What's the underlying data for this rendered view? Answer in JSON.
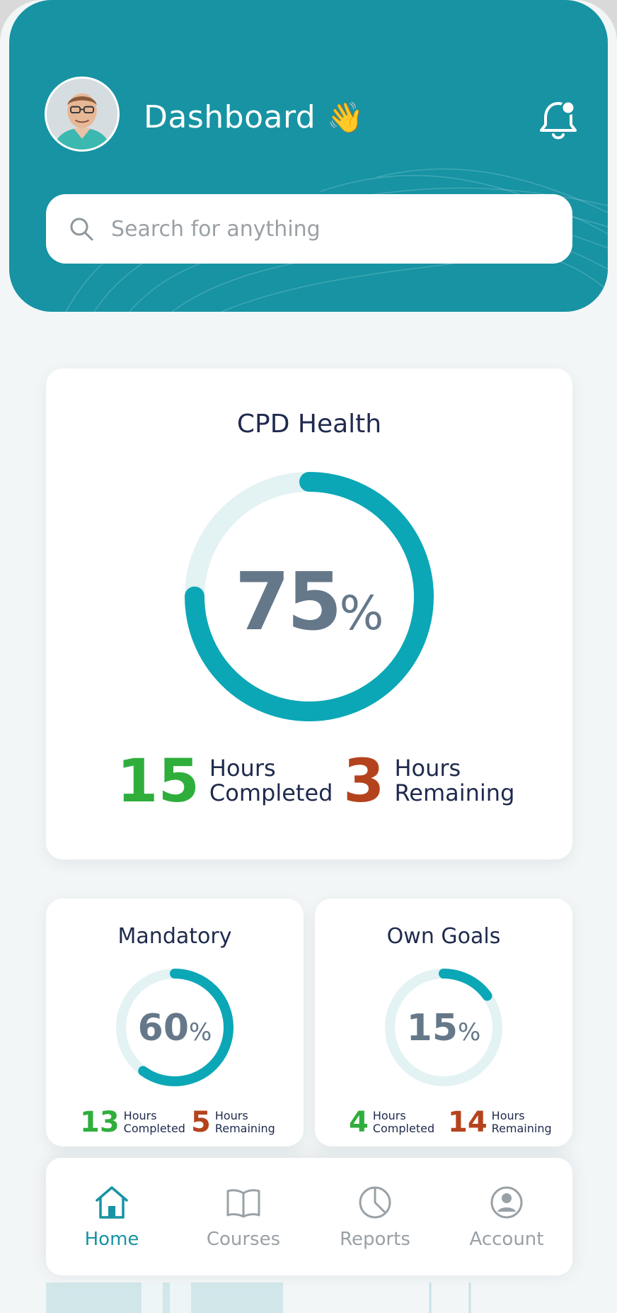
{
  "header": {
    "title": "Dashboard",
    "title_emoji": "👋",
    "search_placeholder": "Search for anything",
    "avatar_icon": "user-avatar",
    "notification_icon": "bell-icon"
  },
  "colors": {
    "teal": "#1793a3",
    "ring": "#0ba7b6",
    "ring_track": "#e3f2f3",
    "green": "#2fae3c",
    "rust": "#b4431d",
    "navy": "#1f2a4d",
    "slate": "#65788a"
  },
  "cpd": {
    "title": "CPD Health",
    "percent": "75",
    "percent_value": 75,
    "unit": "%",
    "completed": "15",
    "completed_label_1": "Hours",
    "completed_label_2": "Completed",
    "remaining": "3",
    "remaining_label_1": "Hours",
    "remaining_label_2": "Remaining"
  },
  "mandatory": {
    "title": "Mandatory",
    "percent": "60",
    "percent_value": 60,
    "unit": "%",
    "completed": "13",
    "completed_label_1": "Hours",
    "completed_label_2": "Completed",
    "remaining": "5",
    "remaining_label_1": "Hours",
    "remaining_label_2": "Remaining"
  },
  "own_goals": {
    "title": "Own Goals",
    "percent": "15",
    "percent_value": 15,
    "unit": "%",
    "completed": "4",
    "completed_label_1": "Hours",
    "completed_label_2": "Completed",
    "remaining": "14",
    "remaining_label_1": "Hours",
    "remaining_label_2": "Remaining"
  },
  "nav": {
    "items": [
      {
        "label": "Home",
        "icon": "home-icon",
        "active": true
      },
      {
        "label": "Courses",
        "icon": "book-icon",
        "active": false
      },
      {
        "label": "Reports",
        "icon": "pie-chart-icon",
        "active": false
      },
      {
        "label": "Account",
        "icon": "account-icon",
        "active": false
      }
    ]
  }
}
